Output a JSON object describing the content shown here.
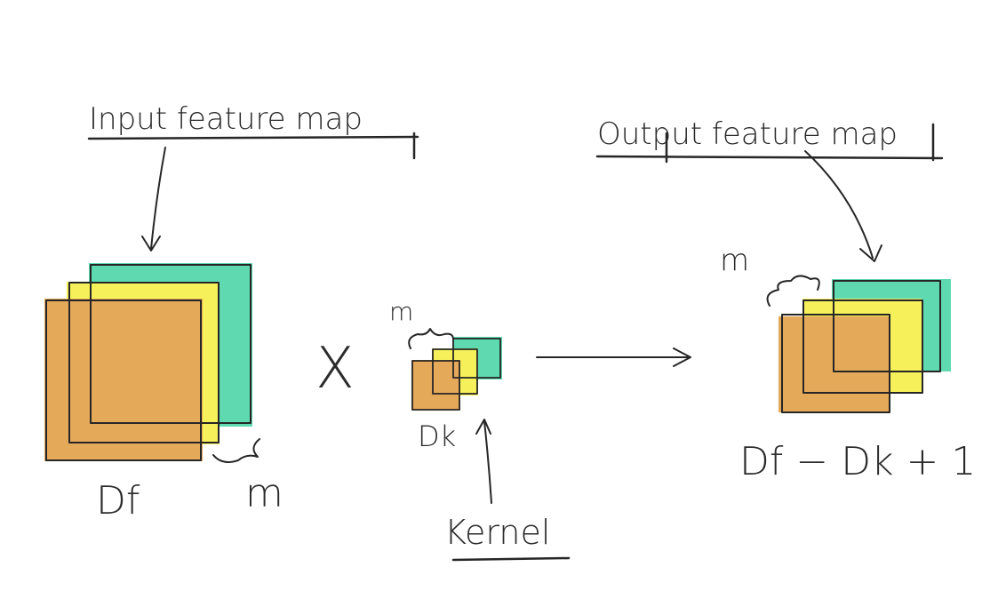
{
  "colors": {
    "orange": "#E5A95A",
    "yellow": "#F6F15A",
    "teal": "#5ED9B0",
    "ink": "#262626"
  },
  "labels": {
    "input_feature_map": "Input feature map",
    "output_feature_map": "Output feature map",
    "kernel": "Kernel",
    "df": "Df",
    "dk": "Dk",
    "m_input": "m",
    "m_kernel": "m",
    "m_output": "m",
    "multiply": "X",
    "output_size": "Df − Dk + 1"
  }
}
